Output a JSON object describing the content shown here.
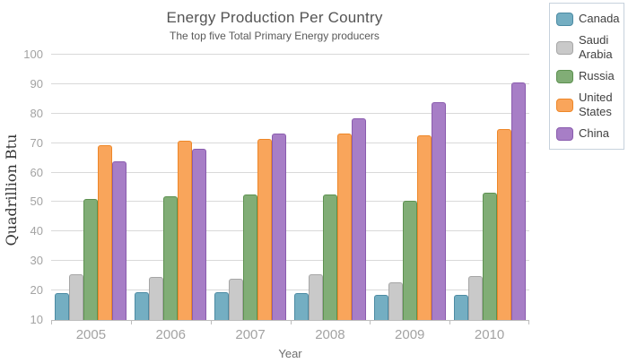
{
  "chart_data": {
    "type": "bar",
    "title": "Energy Production Per Country",
    "subtitle": "The top five Total Primary Energy producers",
    "xlabel": "Year",
    "ylabel": "Quadrillion Btu",
    "categories": [
      "2005",
      "2006",
      "2007",
      "2008",
      "2009",
      "2010"
    ],
    "yticks": [
      10,
      20,
      30,
      40,
      50,
      60,
      70,
      80,
      90,
      100
    ],
    "ylim": [
      10,
      100
    ],
    "grid": "horizontal",
    "legend_position": "top-right",
    "series": [
      {
        "name": "Canada",
        "fill": "#74aec2",
        "stroke": "#4c8ba3",
        "values": [
          19.0,
          19.3,
          19.5,
          19.1,
          18.6,
          18.4
        ]
      },
      {
        "name": "Saudi Arabia",
        "fill": "#c9c9c9",
        "stroke": "#a6a6a6",
        "values": [
          25.6,
          24.7,
          23.9,
          25.4,
          22.7,
          24.8
        ]
      },
      {
        "name": "Russia",
        "fill": "#81ad76",
        "stroke": "#5d9150",
        "values": [
          51.2,
          52.1,
          52.6,
          52.6,
          50.5,
          53.3
        ]
      },
      {
        "name": "United States",
        "fill": "#f9a55b",
        "stroke": "#ee8728",
        "values": [
          69.4,
          70.7,
          71.4,
          73.2,
          72.5,
          74.9
        ]
      },
      {
        "name": "China",
        "fill": "#a77ec6",
        "stroke": "#8a5cae",
        "values": [
          63.9,
          68.0,
          73.3,
          78.3,
          84.0,
          90.5
        ]
      }
    ],
    "style": {
      "grid_color": "#d9d9d9",
      "axis_color": "#bdbdbd",
      "tick_label_color": "#a3a3a3",
      "title_color": "#545454",
      "legend_border_color": "#c7d2dd"
    }
  }
}
